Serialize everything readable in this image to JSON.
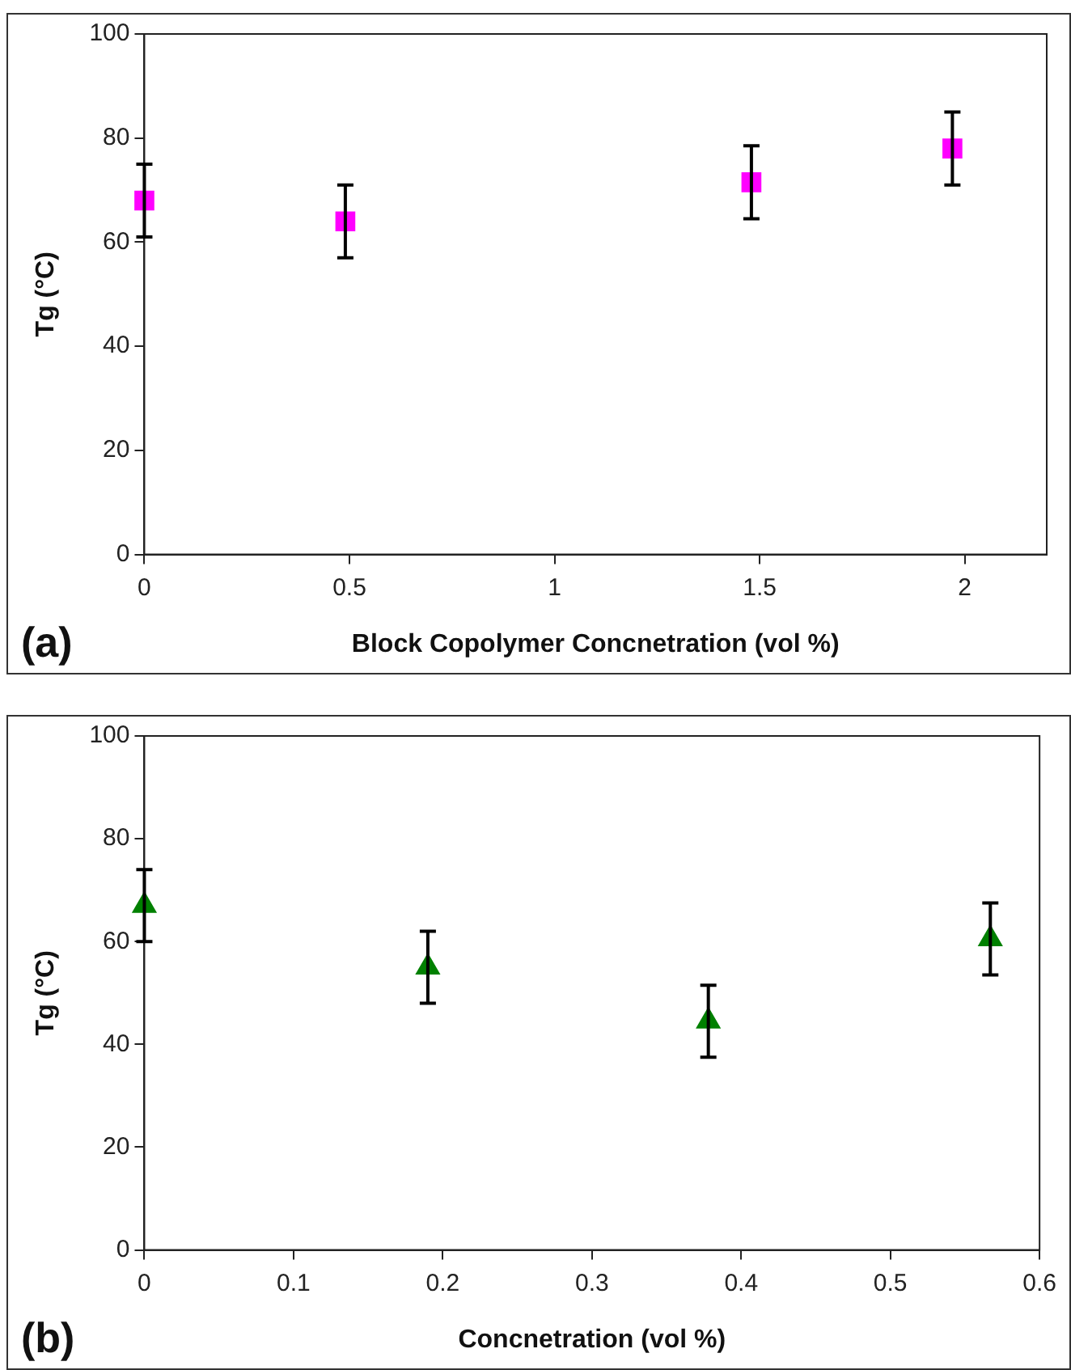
{
  "chart_data": [
    {
      "type": "scatter",
      "xlabel": "Block Copolymer Concnetration (vol %)",
      "ylabel": "Tg (°C)",
      "annotations": [
        "(a)"
      ],
      "x": [
        0,
        0.49,
        1.48,
        1.97
      ],
      "values": [
        68,
        64,
        71.5,
        78
      ],
      "errors": [
        7,
        7,
        7,
        7
      ],
      "color": "#ff00ff",
      "marker": "square",
      "xlim": [
        0,
        2.2
      ],
      "xticks": [
        0,
        0.5,
        1,
        1.5,
        2
      ],
      "ylim": [
        0,
        100
      ],
      "yticks": [
        0,
        20,
        40,
        60,
        80,
        100
      ],
      "grid": false,
      "legend": false
    },
    {
      "type": "scatter",
      "xlabel": "Concnetration (vol %)",
      "ylabel": "Tg (°C)",
      "annotations": [
        "(b)"
      ],
      "x": [
        0,
        0.19,
        0.378,
        0.567
      ],
      "values": [
        67,
        55,
        44.5,
        60.5
      ],
      "errors": [
        7,
        7,
        7,
        7
      ],
      "color": "#008000",
      "marker": "triangle",
      "xlim": [
        0,
        0.6
      ],
      "xticks": [
        0,
        0.1,
        0.2,
        0.3,
        0.4,
        0.5,
        0.6
      ],
      "ylim": [
        0,
        100
      ],
      "yticks": [
        0,
        20,
        40,
        60,
        80,
        100
      ],
      "grid": false,
      "legend": false
    }
  ]
}
